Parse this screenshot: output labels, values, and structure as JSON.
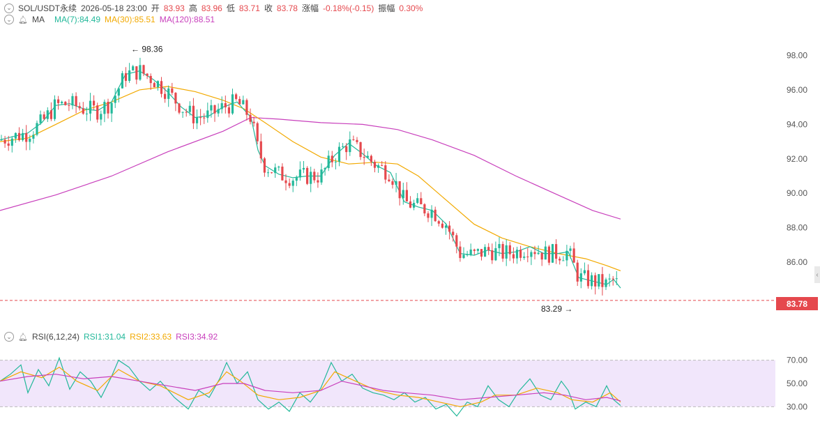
{
  "header": {
    "symbol": "SOL/USDT永续",
    "datetime": "2026-05-18 23:00",
    "open_label": "开",
    "open": "83.93",
    "high_label": "高",
    "high": "83.96",
    "low_label": "低",
    "low": "83.71",
    "close_label": "收",
    "close": "83.78",
    "change_label": "涨幅",
    "change": "-0.18%(-0.15)",
    "amp_label": "振幅",
    "amp": "0.30%"
  },
  "ma_legend": {
    "name": "MA",
    "ma7": "MA(7):84.49",
    "ma30": "MA(30):85.51",
    "ma120": "MA(120):88.51"
  },
  "rsi_legend": {
    "name": "RSI(6,12,24)",
    "rsi1": "RSI1:31.04",
    "rsi2": "RSI2:33.63",
    "rsi3": "RSI3:34.92"
  },
  "colors": {
    "up": "#23b89a",
    "down": "#e5484d",
    "ma7": "#23b89a",
    "ma30": "#f2a900",
    "ma120": "#c83fbc",
    "rsi_band": "#f1e6fb"
  },
  "chart_data": [
    {
      "type": "candlestick",
      "title": "SOL/USDT永续",
      "y_ticks": [
        "98.00",
        "96.00",
        "94.00",
        "92.00",
        "90.00",
        "88.00",
        "86.00"
      ],
      "ylim": [
        82.6,
        99.6
      ],
      "last_price": "83.78",
      "high_marker": "98.36",
      "low_marker": "83.29",
      "ma7_points": [
        [
          0,
          93.1
        ],
        [
          20,
          93.3
        ],
        [
          40,
          93.5
        ],
        [
          60,
          94.1
        ],
        [
          80,
          95.1
        ],
        [
          100,
          95.2
        ],
        [
          120,
          94.9
        ],
        [
          140,
          94.8
        ],
        [
          160,
          95.3
        ],
        [
          180,
          96.9
        ],
        [
          200,
          97.1
        ],
        [
          220,
          96.6
        ],
        [
          240,
          95.9
        ],
        [
          260,
          95.0
        ],
        [
          280,
          94.4
        ],
        [
          300,
          94.5
        ],
        [
          320,
          95.0
        ],
        [
          340,
          95.3
        ],
        [
          360,
          94.4
        ],
        [
          370,
          92.5
        ],
        [
          380,
          91.6
        ],
        [
          400,
          91.1
        ],
        [
          420,
          90.9
        ],
        [
          440,
          91.0
        ],
        [
          460,
          91.0
        ],
        [
          480,
          92.2
        ],
        [
          500,
          92.9
        ],
        [
          520,
          92.3
        ],
        [
          540,
          91.6
        ],
        [
          560,
          91.2
        ],
        [
          580,
          89.5
        ],
        [
          600,
          89.2
        ],
        [
          620,
          89.0
        ],
        [
          640,
          88.2
        ],
        [
          660,
          86.5
        ],
        [
          680,
          86.4
        ],
        [
          700,
          86.7
        ],
        [
          720,
          86.5
        ],
        [
          740,
          86.6
        ],
        [
          760,
          86.9
        ],
        [
          780,
          86.5
        ],
        [
          800,
          86.5
        ],
        [
          815,
          86.6
        ],
        [
          830,
          85.1
        ],
        [
          850,
          84.9
        ],
        [
          870,
          84.7
        ],
        [
          880,
          85.0
        ],
        [
          890,
          84.5
        ]
      ],
      "ma30_points": [
        [
          0,
          93.0
        ],
        [
          40,
          93.2
        ],
        [
          80,
          94.0
        ],
        [
          120,
          94.8
        ],
        [
          160,
          95.3
        ],
        [
          200,
          96.0
        ],
        [
          240,
          96.2
        ],
        [
          280,
          95.9
        ],
        [
          320,
          95.4
        ],
        [
          350,
          94.9
        ],
        [
          380,
          94.1
        ],
        [
          420,
          93.0
        ],
        [
          460,
          92.1
        ],
        [
          500,
          91.7
        ],
        [
          540,
          91.8
        ],
        [
          570,
          91.7
        ],
        [
          600,
          91.0
        ],
        [
          640,
          89.6
        ],
        [
          680,
          88.2
        ],
        [
          720,
          87.4
        ],
        [
          760,
          86.9
        ],
        [
          800,
          86.5
        ],
        [
          840,
          86.2
        ],
        [
          870,
          85.8
        ],
        [
          890,
          85.5
        ]
      ],
      "ma120_points": [
        [
          0,
          89.0
        ],
        [
          80,
          89.9
        ],
        [
          160,
          91.0
        ],
        [
          240,
          92.4
        ],
        [
          320,
          93.6
        ],
        [
          360,
          94.4
        ],
        [
          400,
          94.3
        ],
        [
          460,
          94.1
        ],
        [
          520,
          94.0
        ],
        [
          570,
          93.7
        ],
        [
          620,
          93.1
        ],
        [
          680,
          92.2
        ],
        [
          740,
          91.0
        ],
        [
          800,
          89.9
        ],
        [
          850,
          89.0
        ],
        [
          890,
          88.5
        ]
      ]
    },
    {
      "type": "line",
      "title": "RSI(6,12,24)",
      "y_ticks": [
        "70.00",
        "50.00",
        "30.00"
      ],
      "ylim": [
        20,
        80
      ],
      "band": [
        30,
        70
      ],
      "series": [
        {
          "name": "RSI1",
          "points": [
            [
              0,
              52
            ],
            [
              15,
              58
            ],
            [
              30,
              66
            ],
            [
              40,
              42
            ],
            [
              55,
              62
            ],
            [
              70,
              48
            ],
            [
              85,
              72
            ],
            [
              100,
              45
            ],
            [
              115,
              60
            ],
            [
              130,
              52
            ],
            [
              145,
              38
            ],
            [
              160,
              56
            ],
            [
              170,
              70
            ],
            [
              185,
              64
            ],
            [
              200,
              52
            ],
            [
              215,
              44
            ],
            [
              230,
              52
            ],
            [
              250,
              38
            ],
            [
              270,
              28
            ],
            [
              285,
              44
            ],
            [
              300,
              38
            ],
            [
              315,
              54
            ],
            [
              325,
              68
            ],
            [
              340,
              50
            ],
            [
              355,
              60
            ],
            [
              370,
              36
            ],
            [
              385,
              28
            ],
            [
              400,
              34
            ],
            [
              415,
              26
            ],
            [
              430,
              42
            ],
            [
              445,
              34
            ],
            [
              460,
              46
            ],
            [
              475,
              68
            ],
            [
              490,
              52
            ],
            [
              505,
              58
            ],
            [
              520,
              46
            ],
            [
              535,
              42
            ],
            [
              550,
              40
            ],
            [
              565,
              36
            ],
            [
              580,
              42
            ],
            [
              595,
              34
            ],
            [
              610,
              38
            ],
            [
              625,
              28
            ],
            [
              640,
              32
            ],
            [
              655,
              22
            ],
            [
              670,
              34
            ],
            [
              685,
              30
            ],
            [
              700,
              48
            ],
            [
              715,
              36
            ],
            [
              730,
              30
            ],
            [
              745,
              44
            ],
            [
              760,
              54
            ],
            [
              775,
              40
            ],
            [
              790,
              36
            ],
            [
              805,
              52
            ],
            [
              815,
              44
            ],
            [
              825,
              28
            ],
            [
              840,
              34
            ],
            [
              855,
              30
            ],
            [
              870,
              48
            ],
            [
              880,
              36
            ],
            [
              890,
              31
            ]
          ]
        },
        {
          "name": "RSI2",
          "points": [
            [
              0,
              52
            ],
            [
              30,
              60
            ],
            [
              60,
              55
            ],
            [
              85,
              64
            ],
            [
              110,
              52
            ],
            [
              140,
              44
            ],
            [
              170,
              62
            ],
            [
              200,
              52
            ],
            [
              230,
              48
            ],
            [
              270,
              36
            ],
            [
              300,
              42
            ],
            [
              325,
              60
            ],
            [
              345,
              52
            ],
            [
              370,
              40
            ],
            [
              400,
              36
            ],
            [
              430,
              38
            ],
            [
              460,
              44
            ],
            [
              480,
              60
            ],
            [
              510,
              52
            ],
            [
              540,
              44
            ],
            [
              570,
              40
            ],
            [
              600,
              38
            ],
            [
              630,
              34
            ],
            [
              660,
              30
            ],
            [
              690,
              34
            ],
            [
              710,
              40
            ],
            [
              740,
              40
            ],
            [
              770,
              46
            ],
            [
              800,
              42
            ],
            [
              820,
              36
            ],
            [
              850,
              34
            ],
            [
              875,
              42
            ],
            [
              890,
              34
            ]
          ]
        },
        {
          "name": "RSI3",
          "points": [
            [
              0,
              52
            ],
            [
              40,
              56
            ],
            [
              80,
              58
            ],
            [
              120,
              54
            ],
            [
              160,
              56
            ],
            [
              200,
              52
            ],
            [
              240,
              48
            ],
            [
              280,
              44
            ],
            [
              320,
              50
            ],
            [
              350,
              50
            ],
            [
              380,
              44
            ],
            [
              420,
              42
            ],
            [
              460,
              44
            ],
            [
              490,
              52
            ],
            [
              520,
              48
            ],
            [
              550,
              44
            ],
            [
              580,
              42
            ],
            [
              620,
              40
            ],
            [
              660,
              36
            ],
            [
              700,
              38
            ],
            [
              740,
              40
            ],
            [
              780,
              42
            ],
            [
              810,
              40
            ],
            [
              840,
              36
            ],
            [
              870,
              38
            ],
            [
              890,
              35
            ]
          ]
        }
      ]
    }
  ]
}
